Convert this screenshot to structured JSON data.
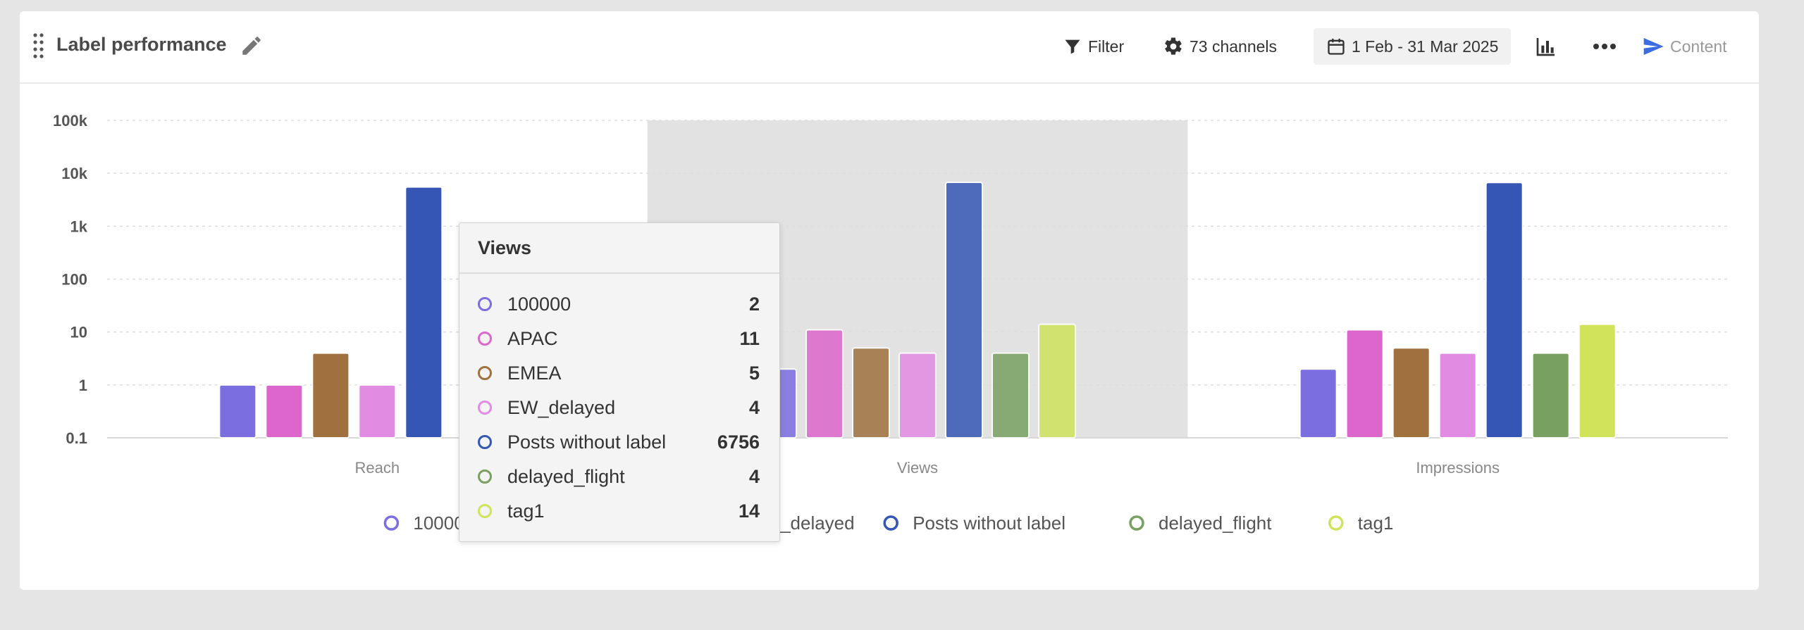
{
  "header": {
    "title": "Label performance",
    "filter_label": "Filter",
    "channels_label": "73 channels",
    "date_range": "1 Feb - 31 Mar 2025",
    "content_label": "Content"
  },
  "colors": {
    "accent": "#3b6be0",
    "highlight_band": "#e2e2e2"
  },
  "icons": [
    "drag-handle-icon",
    "pencil-icon",
    "filter-icon",
    "gear-icon",
    "calendar-icon",
    "bar-chart-icon",
    "more-icon",
    "send-icon"
  ],
  "chart_data": {
    "type": "bar",
    "y_scale": "log",
    "ylim": [
      0.1,
      100000
    ],
    "y_ticks": [
      "0.1",
      "1",
      "10",
      "100",
      "1k",
      "10k",
      "100k"
    ],
    "grid": true,
    "legend_position": "bottom",
    "categories": [
      "Reach",
      "Views",
      "Impressions"
    ],
    "highlighted_category": "Views",
    "series": [
      {
        "name": "100000",
        "color": "#7b6ee0",
        "values": [
          1,
          2,
          2
        ]
      },
      {
        "name": "APAC",
        "color": "#dd66cc",
        "values": [
          1,
          11,
          11
        ]
      },
      {
        "name": "EMEA",
        "color": "#a0713f",
        "values": [
          4,
          5,
          5
        ]
      },
      {
        "name": "EW_delayed",
        "color": "#e28be3",
        "values": [
          1,
          4,
          4
        ]
      },
      {
        "name": "Posts without label",
        "color": "#3556b4",
        "values": [
          5500,
          6756,
          6700
        ]
      },
      {
        "name": "delayed_flight",
        "color": "#78a060",
        "values": [
          null,
          4,
          4
        ]
      },
      {
        "name": "tag1",
        "color": "#d0e35a",
        "values": [
          null,
          14,
          14
        ]
      }
    ]
  },
  "tooltip": {
    "title": "Views",
    "rows": [
      {
        "label": "100000",
        "value": "2",
        "color": "#7b6ee0"
      },
      {
        "label": "APAC",
        "value": "11",
        "color": "#dd66cc"
      },
      {
        "label": "EMEA",
        "value": "5",
        "color": "#a0713f"
      },
      {
        "label": "EW_delayed",
        "value": "4",
        "color": "#e28be3"
      },
      {
        "label": "Posts without label",
        "value": "6756",
        "color": "#3556b4"
      },
      {
        "label": "delayed_flight",
        "value": "4",
        "color": "#78a060"
      },
      {
        "label": "tag1",
        "value": "14",
        "color": "#d0e35a"
      }
    ]
  }
}
